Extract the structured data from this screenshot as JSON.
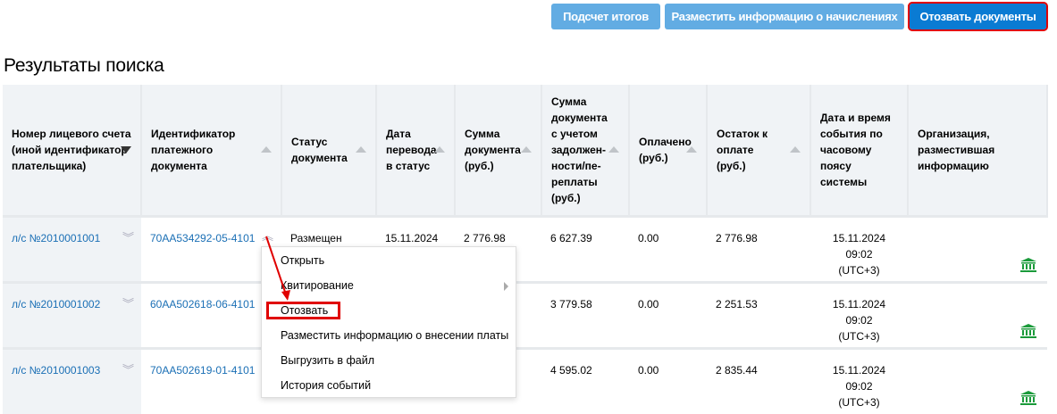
{
  "toolbar": {
    "totals": "Подсчет итогов",
    "post_charges": "Разместить информацию о начислениях",
    "revoke_docs": "Отозвать документы"
  },
  "title": "Результаты поиска",
  "columns": [
    "Номер лицевого счета (иной идентификатор плательщика)",
    "Идентификатор платежного документа",
    "Статус документа",
    "Дата перевода в статус",
    "Сумма документа (руб.)",
    "Сумма документа с учетом задолжен-ности/пе-реплаты (руб.)",
    "Оплачено (руб.)",
    "Остаток к оплате (руб.)",
    "Дата и время события по часовому поясу системы",
    "Организация, разместившая информацию"
  ],
  "rows": [
    {
      "account": "л/с №2010001001",
      "doc_id": "70AA534292-05-4101",
      "status": "Размещен",
      "date": "15.11.2024",
      "sum": "2 776.98",
      "sum_debt": "6 627.39",
      "paid": "0.00",
      "remaining": "2 776.98",
      "event_date": "15.11.2024",
      "event_time": "09:02",
      "tz": "(UTC+3)"
    },
    {
      "account": "л/с №2010001002",
      "doc_id": "60AA502618-06-4101",
      "status": "",
      "date": "",
      "sum": "",
      "sum_debt": "3 779.58",
      "paid": "0.00",
      "remaining": "2 251.53",
      "event_date": "15.11.2024",
      "event_time": "09:02",
      "tz": "(UTC+3)"
    },
    {
      "account": "л/с №2010001003",
      "doc_id": "70AA502619-01-4101",
      "status": "",
      "date": "",
      "sum": "",
      "sum_debt": "4 595.02",
      "paid": "0.00",
      "remaining": "2 835.44",
      "event_date": "15.11.2024",
      "event_time": "09:02",
      "tz": "(UTC+3)"
    }
  ],
  "menu": [
    "Открыть",
    "Квитирование",
    "Отозвать",
    "Разместить информацию о внесении платы",
    "Выгрузить в файл",
    "История событий"
  ],
  "colors": {
    "accent": "#0a7bd3",
    "light_button": "#62ace3",
    "link": "#1a6fb5",
    "highlight": "#e00000",
    "org_icon": "#1a9a3a"
  }
}
